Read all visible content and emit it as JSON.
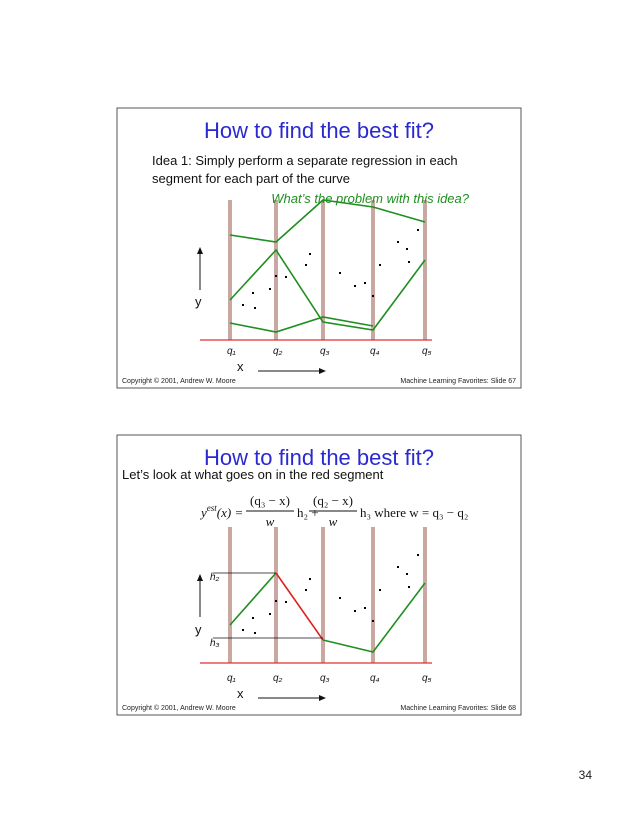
{
  "slides": [
    {
      "title": "How to find the best fit?",
      "body": [
        "Idea 1: Simply perform a separate regression in each",
        "segment for each part of the curve"
      ],
      "annotation": "What’s the problem with this idea?",
      "q_labels": [
        "q₁",
        "q₂",
        "q₃",
        "q₄",
        "q₅"
      ],
      "x_label": "x",
      "y_label": "y",
      "footer_left": "Copyright © 2001, Andrew W. Moore",
      "footer_right": "Machine Learning Favorites: Slide 67"
    },
    {
      "title": "How to find the best fit?",
      "intro": "Let’s look at what goes on in the red segment",
      "formula": {
        "lhs": "y",
        "lhs_sup": "est",
        "lhs_tail": "(x) =",
        "frac1_num": "(q₃ − x)",
        "frac1_den": "w",
        "mid": "h₂ +",
        "frac2_num": "(q₂ − x)",
        "frac2_den": "w",
        "tail": "h₃ where w = q₃ − q₂"
      },
      "h_labels": [
        "h₂",
        "h₃"
      ],
      "q_labels": [
        "q₁",
        "q₂",
        "q₃",
        "q₄",
        "q₅"
      ],
      "x_label": "x",
      "y_label": "y",
      "footer_left": "Copyright © 2001, Andrew W. Moore",
      "footer_right": "Machine Learning Favorites: Slide 68"
    }
  ],
  "page_number": "34"
}
